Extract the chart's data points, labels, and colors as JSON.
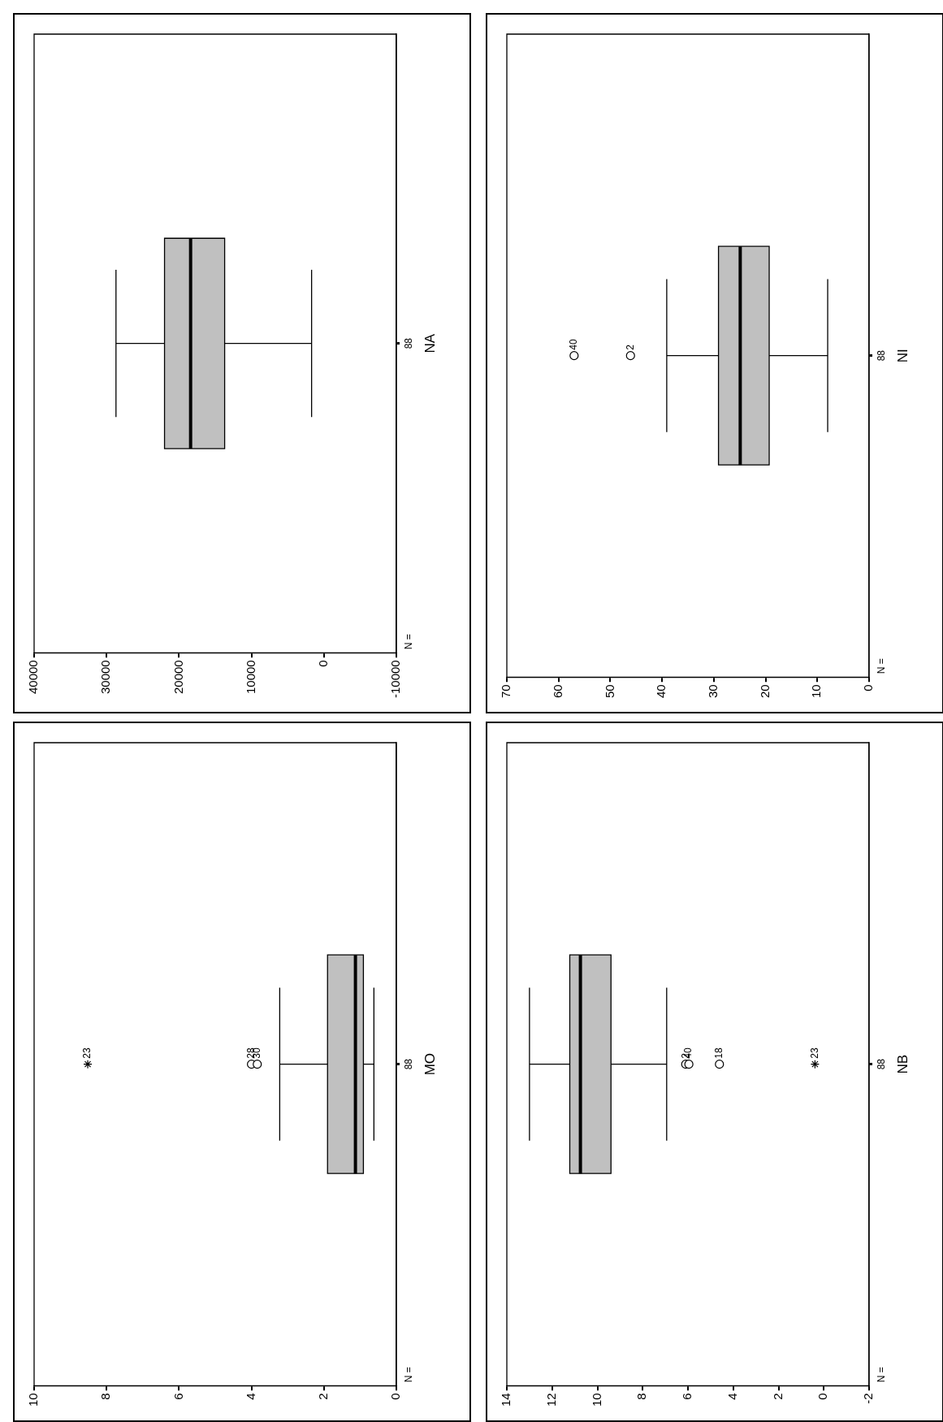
{
  "chart_data": [
    {
      "type": "box",
      "orientation": "horizontal",
      "categories": [
        "MO"
      ],
      "color": "#c0c0c0",
      "xlim": [
        10,
        0
      ],
      "xticks": [
        10,
        8,
        6,
        4,
        2,
        0
      ],
      "boxes": [
        {
          "low": 0.62,
          "q1": 0.91,
          "median": 1.13,
          "q3": 1.9,
          "high": 3.22
        }
      ],
      "series": [
        {
          "type": "scatter",
          "x": [
            "MO",
            "MO"
          ],
          "values": [
            4.0,
            3.84
          ],
          "marker": "circle",
          "color": "#000000"
        },
        {
          "type": "scatter",
          "x": [
            "MO"
          ],
          "values": [
            8.52
          ],
          "marker": "cross",
          "color": "#000000"
        }
      ],
      "annotations": [
        "N =",
        "88",
        {
          "text": "28",
          "x": 4.0,
          "y": "MO"
        },
        {
          "text": "30",
          "x": 3.84,
          "y": "MO"
        },
        {
          "text": "23",
          "x": 8.52,
          "y": "MO"
        }
      ]
    },
    {
      "type": "box",
      "orientation": "horizontal",
      "categories": [
        "NA"
      ],
      "color": "#c0c0c0",
      "xlim": [
        40000,
        -10000
      ],
      "xticks": [
        40000,
        30000,
        20000,
        10000,
        0,
        -10000
      ],
      "boxes": [
        {
          "low": 1700,
          "q1": 13700,
          "median": 18400,
          "q3": 22000,
          "high": 28700
        }
      ],
      "annotations": [
        "N =",
        "88"
      ]
    },
    {
      "type": "box",
      "orientation": "horizontal",
      "categories": [
        "NB"
      ],
      "color": "#c0c0c0",
      "xlim": [
        14,
        -2
      ],
      "xticks": [
        14,
        12,
        10,
        8,
        6,
        4,
        2,
        0,
        -2
      ],
      "boxes": [
        {
          "low": 6.94,
          "q1": 9.4,
          "median": 10.75,
          "q3": 11.22,
          "high": 13.0
        }
      ],
      "series": [
        {
          "type": "scatter",
          "x": [
            "NB",
            "NB",
            "NB"
          ],
          "values": [
            6.1,
            5.96,
            4.61
          ],
          "marker": "circle",
          "color": "#000000"
        },
        {
          "type": "scatter",
          "x": [
            "NB"
          ],
          "values": [
            0.39
          ],
          "marker": "cross",
          "color": "#000000"
        }
      ],
      "annotations": [
        "N =",
        "88",
        {
          "text": "2",
          "x": 6.1,
          "y": "NB"
        },
        {
          "text": "40",
          "x": 5.96,
          "y": "NB"
        },
        {
          "text": "18",
          "x": 4.61,
          "y": "NB"
        },
        {
          "text": "23",
          "x": 0.39,
          "y": "NB"
        }
      ]
    },
    {
      "type": "box",
      "orientation": "horizontal",
      "categories": [
        "NI"
      ],
      "color": "#c0c0c0",
      "xlim": [
        70,
        0
      ],
      "xticks": [
        70,
        60,
        50,
        40,
        30,
        20,
        10,
        0
      ],
      "boxes": [
        {
          "low": 8.0,
          "q1": 19.3,
          "median": 24.9,
          "q3": 29.1,
          "high": 39.1
        }
      ],
      "series": [
        {
          "type": "scatter",
          "x": [
            "NI",
            "NI"
          ],
          "values": [
            57.0,
            46.1
          ],
          "marker": "circle",
          "color": "#000000"
        }
      ],
      "annotations": [
        "N =",
        "88",
        {
          "text": "40",
          "x": 57.0,
          "y": "NI"
        },
        {
          "text": "2",
          "x": 46.1,
          "y": "NI"
        }
      ]
    }
  ]
}
